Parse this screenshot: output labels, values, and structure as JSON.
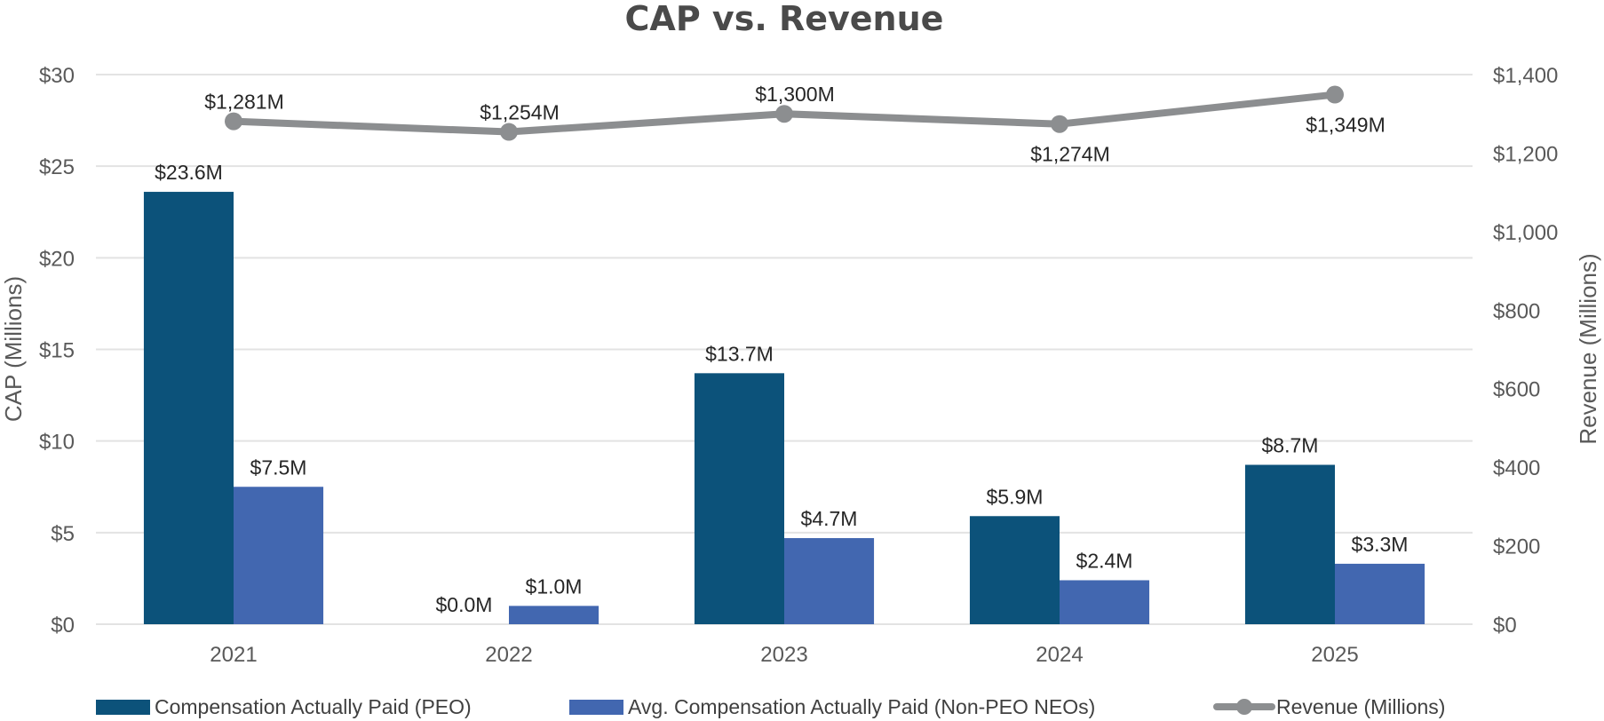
{
  "chart_data": {
    "type": "bar",
    "title": "CAP vs. Revenue",
    "categories": [
      "2021",
      "2022",
      "2023",
      "2024",
      "2025"
    ],
    "series": [
      {
        "name": "Compensation Actually Paid (PEO)",
        "type": "bar",
        "axis": "left",
        "color": "#0C527A",
        "values": [
          23.6,
          0.0,
          13.7,
          5.9,
          8.7
        ],
        "labels": [
          "$23.6M",
          "$0.0M",
          "$13.7M",
          "$5.9M",
          "$8.7M"
        ]
      },
      {
        "name": "Avg. Compensation Actually Paid (Non-PEO NEOs)",
        "type": "bar",
        "axis": "left",
        "color": "#4267B0",
        "values": [
          7.5,
          1.0,
          4.7,
          2.4,
          3.3
        ],
        "labels": [
          "$7.5M",
          "$1.0M",
          "$4.7M",
          "$2.4M",
          "$3.3M"
        ]
      },
      {
        "name": "Revenue (Millions)",
        "type": "line",
        "axis": "right",
        "color": "#8C8E90",
        "values": [
          1281,
          1254,
          1300,
          1274,
          1349
        ],
        "labels": [
          "$1,281M",
          "$1,254M",
          "$1,300M",
          "$1,274M",
          "$1,349M"
        ],
        "label_positions": [
          "above",
          "above",
          "above",
          "below",
          "below"
        ]
      }
    ],
    "left_axis": {
      "label": "CAP (Millions)",
      "ylim": [
        0,
        30
      ],
      "ticks": [
        0,
        5,
        10,
        15,
        20,
        25,
        30
      ],
      "tick_labels": [
        "$0",
        "$5",
        "$10",
        "$15",
        "$20",
        "$25",
        "$30"
      ]
    },
    "right_axis": {
      "label": "Revenue (Millions)",
      "ylim": [
        0,
        1400
      ],
      "ticks": [
        0,
        200,
        400,
        600,
        800,
        1000,
        1200,
        1400
      ],
      "tick_labels": [
        "$0",
        "$200",
        "$400",
        "$600",
        "$800",
        "$1,000",
        "$1,200",
        "$1,400"
      ]
    },
    "xlabel": "",
    "grid": true,
    "legend_position": "bottom"
  }
}
